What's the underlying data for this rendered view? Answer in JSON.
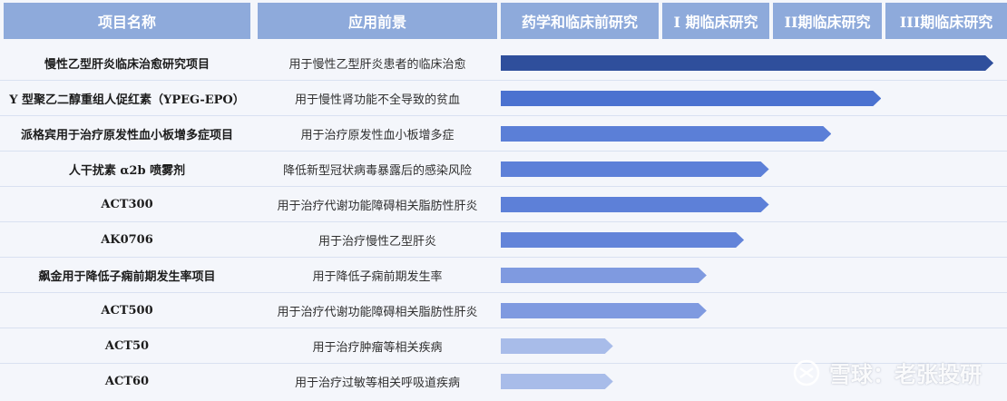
{
  "chart_data": {
    "type": "bar",
    "headers": [
      "项目名称",
      "应用前景",
      "药学和临床前研究",
      "I 期临床研究",
      "II期临床研究",
      "III期临床研究"
    ],
    "stages": [
      "药学和临床前研究",
      "I 期临床研究",
      "II期临床研究",
      "III期临床研究"
    ],
    "rows": [
      {
        "name": "慢性乙型肝炎临床治愈研究项目",
        "application": "用于慢性乙型肝炎患者的临床治愈",
        "progress": 3.95,
        "color": "#2f4f9c"
      },
      {
        "name": "Y 型聚乙二醇重组人促红素（YPEG-EPO）",
        "application": "用于慢性肾功能不全导致的贫血",
        "progress": 3.05,
        "color": "#4b72d0"
      },
      {
        "name": "派格宾用于治疗原发性血小板增多症项目",
        "application": "用于治疗原发性血小板增多症",
        "progress": 2.65,
        "color": "#5b7fd7"
      },
      {
        "name": "人干扰素 α2b 喷雾剂",
        "application": "降低新型冠状病毒暴露后的感染风险",
        "progress": 2.15,
        "color": "#5d80d8"
      },
      {
        "name": "ACT300",
        "application": "用于治疗代谢功能障碍相关脂肪性肝炎",
        "progress": 2.15,
        "color": "#5d80d8"
      },
      {
        "name": "AK0706",
        "application": "用于治疗慢性乙型肝炎",
        "progress": 1.95,
        "color": "#6384d9"
      },
      {
        "name": "飙金用于降低子痫前期发生率项目",
        "application": "用于降低子痫前期发生率",
        "progress": 1.65,
        "color": "#7f9ae0"
      },
      {
        "name": "ACT500",
        "application": "用于治疗代谢功能障碍相关脂肪性肝炎",
        "progress": 1.65,
        "color": "#7f9ae0"
      },
      {
        "name": "ACT50",
        "application": "用于治疗肿瘤等相关疾病",
        "progress": 0.9,
        "color": "#a8bce9"
      },
      {
        "name": "ACT60",
        "application": "用于治疗过敏等相关呼吸道疾病",
        "progress": 0.9,
        "color": "#a8bce9"
      }
    ],
    "xlim": [
      0,
      4
    ]
  },
  "watermark": "雪球：老张投研",
  "colors": {
    "header_bg": "#8eaadb",
    "page_bg": "#f4f6fb",
    "row_line": "#d9e1f1"
  }
}
